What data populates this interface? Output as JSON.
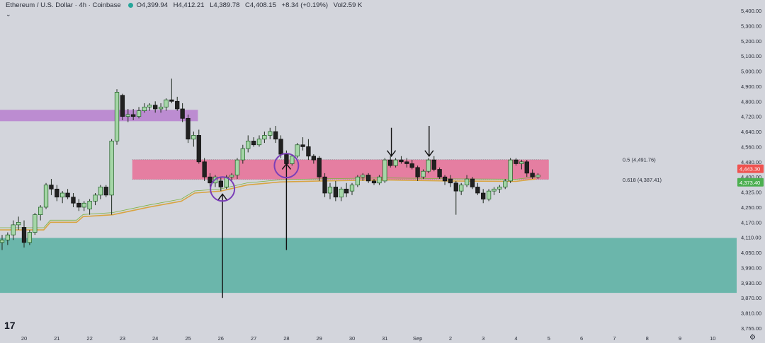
{
  "header": {
    "symbol": "Ethereum / U.S. Dollar · 4h · Coinbase",
    "open": "O4,399.94",
    "high": "H4,412.21",
    "low": "L4,389.78",
    "close": "C4,408.15",
    "change": "+8.34 (+0.19%)",
    "volume": "Vol2.59 K"
  },
  "icons": {
    "chevron": "chevron-down-icon",
    "logo": "tradingview-logo-icon",
    "settings": "gear-icon"
  },
  "colors": {
    "background": "#d3d5dc",
    "candle_up_fill": "#a5d6a7",
    "candle_up_border": "#1b5e20",
    "candle_down_fill": "#212121",
    "supply_zone": "#b77fcf",
    "demand_zone": "#5fb3a5",
    "fib_zone": "#e86f96",
    "price_label_red": "#ef5350",
    "price_label_green": "#4caf50"
  },
  "chart_data": {
    "type": "candlestick",
    "x_labels": [
      "20",
      "21",
      "22",
      "23",
      "24",
      "25",
      "26",
      "27",
      "28",
      "29",
      "30",
      "31",
      "Sep",
      "2",
      "3",
      "4",
      "5",
      "6",
      "7",
      "8",
      "9",
      "10"
    ],
    "y_ticks": [
      "5,400.00",
      "5,300.00",
      "5,200.00",
      "5,100.00",
      "5,000.00",
      "4,900.00",
      "4,800.00",
      "4,720.00",
      "4,640.00",
      "4,560.00",
      "4,480.00",
      "4,400.00",
      "4,325.00",
      "4,250.00",
      "4,170.00",
      "4,110.00",
      "4,050.00",
      "3,990.00",
      "3,930.00",
      "3,870.00",
      "3,810.00",
      "3,755.00"
    ],
    "price_labels": [
      {
        "text": "4,443.30",
        "value": 4443.3,
        "color": "red"
      },
      {
        "text": "4,373.40",
        "value": 4373.4,
        "color": "green"
      }
    ],
    "fib_levels": [
      {
        "text": "0.5 (4,491.76)",
        "value": 4491.76
      },
      {
        "text": "0.618 (4,387.41)",
        "value": 4387.41
      }
    ],
    "zones": [
      {
        "name": "supply",
        "from_day": 19.0,
        "to_day": 25.3,
        "top": 4755,
        "bottom": 4695
      },
      {
        "name": "fib",
        "from_day": 23.3,
        "to_day": 36.0,
        "top": 4491.76,
        "bottom": 4387.41
      },
      {
        "name": "demand",
        "from_day": 19.0,
        "to_day": 42.0,
        "top": 4108,
        "bottom": 3890
      }
    ],
    "step_line": [
      [
        19.0,
        4140
      ],
      [
        20.6,
        4140
      ],
      [
        20.8,
        4170
      ],
      [
        21.6,
        4170
      ],
      [
        21.8,
        4200
      ],
      [
        22.7,
        4210
      ],
      [
        23.8,
        4250
      ],
      [
        24.8,
        4280
      ],
      [
        25.2,
        4320
      ],
      [
        26.0,
        4330
      ],
      [
        26.8,
        4360
      ],
      [
        27.8,
        4375
      ],
      [
        29.0,
        4380
      ],
      [
        31.0,
        4385
      ],
      [
        33.0,
        4380
      ],
      [
        35.0,
        4378
      ],
      [
        35.6,
        4390
      ]
    ],
    "annotations": [
      {
        "type": "arrow_up",
        "day": 26.05,
        "tip": 4315,
        "tail": 3870
      },
      {
        "type": "arrow_up",
        "day": 28.0,
        "tip": 4470,
        "tail": 4060
      },
      {
        "type": "arrow_down",
        "day": 31.2,
        "tip": 4510,
        "tail": 4660
      },
      {
        "type": "arrow_down",
        "day": 32.35,
        "tip": 4510,
        "tail": 4670
      },
      {
        "type": "circle",
        "day": 26.05,
        "value": 4340
      },
      {
        "type": "circle",
        "day": 28.0,
        "value": 4460
      }
    ],
    "candles": [
      [
        19.0,
        4110,
        4140,
        4100,
        4130
      ],
      [
        19.17,
        4130,
        4140,
        4080,
        4090
      ],
      [
        19.33,
        4090,
        4120,
        4060,
        4100
      ],
      [
        19.5,
        4100,
        4130,
        4080,
        4120
      ],
      [
        19.67,
        4120,
        4180,
        4100,
        4160
      ],
      [
        19.83,
        4160,
        4200,
        4140,
        4170
      ],
      [
        20.0,
        4150,
        4180,
        4070,
        4090
      ],
      [
        20.17,
        4090,
        4140,
        4080,
        4130
      ],
      [
        20.33,
        4130,
        4220,
        4120,
        4210
      ],
      [
        20.5,
        4210,
        4260,
        4180,
        4250
      ],
      [
        20.67,
        4250,
        4370,
        4240,
        4360
      ],
      [
        20.83,
        4360,
        4390,
        4310,
        4340
      ],
      [
        21.0,
        4340,
        4360,
        4280,
        4300
      ],
      [
        21.17,
        4300,
        4330,
        4270,
        4320
      ],
      [
        21.33,
        4320,
        4340,
        4290,
        4300
      ],
      [
        21.5,
        4300,
        4320,
        4250,
        4270
      ],
      [
        21.67,
        4270,
        4290,
        4230,
        4250
      ],
      [
        21.83,
        4250,
        4280,
        4230,
        4270
      ],
      [
        22.0,
        4240,
        4290,
        4210,
        4280
      ],
      [
        22.17,
        4280,
        4320,
        4260,
        4310
      ],
      [
        22.33,
        4310,
        4360,
        4290,
        4350
      ],
      [
        22.5,
        4350,
        4360,
        4300,
        4310
      ],
      [
        22.67,
        4310,
        4600,
        4210,
        4590
      ],
      [
        22.83,
        4590,
        4880,
        4570,
        4860
      ],
      [
        23.0,
        4840,
        4850,
        4700,
        4720
      ],
      [
        23.17,
        4720,
        4760,
        4690,
        4730
      ],
      [
        23.33,
        4730,
        4760,
        4700,
        4720
      ],
      [
        23.5,
        4720,
        4770,
        4710,
        4750
      ],
      [
        23.67,
        4750,
        4790,
        4740,
        4770
      ],
      [
        23.83,
        4770,
        4790,
        4750,
        4780
      ],
      [
        24.0,
        4780,
        4800,
        4740,
        4760
      ],
      [
        24.17,
        4760,
        4790,
        4740,
        4770
      ],
      [
        24.33,
        4770,
        4820,
        4750,
        4810
      ],
      [
        24.5,
        4810,
        4950,
        4790,
        4800
      ],
      [
        24.67,
        4800,
        4830,
        4750,
        4760
      ],
      [
        24.83,
        4760,
        4790,
        4690,
        4710
      ],
      [
        25.0,
        4710,
        4730,
        4580,
        4600
      ],
      [
        25.17,
        4600,
        4640,
        4560,
        4620
      ],
      [
        25.33,
        4620,
        4650,
        4470,
        4480
      ],
      [
        25.5,
        4480,
        4500,
        4380,
        4400
      ],
      [
        25.67,
        4400,
        4420,
        4350,
        4370
      ],
      [
        25.83,
        4370,
        4410,
        4350,
        4400
      ],
      [
        26.0,
        4380,
        4400,
        4330,
        4350
      ],
      [
        26.17,
        4350,
        4410,
        4340,
        4400
      ],
      [
        26.33,
        4400,
        4420,
        4380,
        4410
      ],
      [
        26.5,
        4410,
        4500,
        4390,
        4490
      ],
      [
        26.67,
        4490,
        4570,
        4470,
        4550
      ],
      [
        26.83,
        4550,
        4620,
        4530,
        4590
      ],
      [
        27.0,
        4590,
        4610,
        4560,
        4570
      ],
      [
        27.17,
        4570,
        4620,
        4560,
        4600
      ],
      [
        27.33,
        4600,
        4640,
        4580,
        4620
      ],
      [
        27.5,
        4620,
        4660,
        4600,
        4640
      ],
      [
        27.67,
        4640,
        4670,
        4580,
        4600
      ],
      [
        27.83,
        4600,
        4620,
        4500,
        4520
      ],
      [
        28.0,
        4520,
        4540,
        4450,
        4470
      ],
      [
        28.17,
        4470,
        4520,
        4460,
        4510
      ],
      [
        28.33,
        4510,
        4580,
        4500,
        4570
      ],
      [
        28.5,
        4570,
        4610,
        4540,
        4560
      ],
      [
        28.67,
        4560,
        4600,
        4490,
        4510
      ],
      [
        28.83,
        4510,
        4520,
        4470,
        4490
      ],
      [
        29.0,
        4500,
        4510,
        4380,
        4400
      ],
      [
        29.17,
        4400,
        4420,
        4300,
        4320
      ],
      [
        29.33,
        4320,
        4370,
        4290,
        4350
      ],
      [
        29.5,
        4350,
        4380,
        4280,
        4300
      ],
      [
        29.67,
        4300,
        4350,
        4280,
        4340
      ],
      [
        29.83,
        4340,
        4370,
        4300,
        4320
      ],
      [
        30.0,
        4330,
        4370,
        4310,
        4360
      ],
      [
        30.17,
        4360,
        4410,
        4350,
        4400
      ],
      [
        30.33,
        4400,
        4420,
        4380,
        4410
      ],
      [
        30.5,
        4410,
        4420,
        4370,
        4380
      ],
      [
        30.67,
        4380,
        4390,
        4360,
        4370
      ],
      [
        30.83,
        4370,
        4410,
        4360,
        4400
      ],
      [
        31.0,
        4380,
        4500,
        4370,
        4490
      ],
      [
        31.17,
        4490,
        4510,
        4450,
        4460
      ],
      [
        31.33,
        4460,
        4500,
        4450,
        4490
      ],
      [
        31.5,
        4490,
        4510,
        4470,
        4480
      ],
      [
        31.67,
        4480,
        4500,
        4450,
        4470
      ],
      [
        31.83,
        4470,
        4490,
        4440,
        4450
      ],
      [
        32.0,
        4450,
        4460,
        4380,
        4400
      ],
      [
        32.17,
        4400,
        4440,
        4390,
        4430
      ],
      [
        32.33,
        4430,
        4500,
        4420,
        4490
      ],
      [
        32.5,
        4490,
        4510,
        4430,
        4440
      ],
      [
        32.67,
        4440,
        4450,
        4390,
        4400
      ],
      [
        32.83,
        4400,
        4410,
        4360,
        4380
      ],
      [
        33.0,
        4390,
        4410,
        4350,
        4370
      ],
      [
        33.17,
        4370,
        4380,
        4210,
        4330
      ],
      [
        33.33,
        4330,
        4370,
        4310,
        4360
      ],
      [
        33.5,
        4360,
        4410,
        4350,
        4390
      ],
      [
        33.67,
        4390,
        4400,
        4340,
        4350
      ],
      [
        33.83,
        4350,
        4370,
        4310,
        4320
      ],
      [
        34.0,
        4320,
        4340,
        4270,
        4290
      ],
      [
        34.17,
        4290,
        4340,
        4280,
        4330
      ],
      [
        34.33,
        4330,
        4350,
        4310,
        4340
      ],
      [
        34.5,
        4340,
        4360,
        4320,
        4350
      ],
      [
        34.67,
        4350,
        4390,
        4340,
        4380
      ],
      [
        34.83,
        4380,
        4500,
        4370,
        4490
      ],
      [
        35.0,
        4490,
        4500,
        4460,
        4470
      ],
      [
        35.17,
        4470,
        4490,
        4440,
        4480
      ],
      [
        35.33,
        4480,
        4490,
        4400,
        4420
      ],
      [
        35.5,
        4420,
        4440,
        4390,
        4400
      ],
      [
        35.67,
        4400,
        4420,
        4390,
        4410
      ]
    ],
    "candle_format": [
      "day",
      "open",
      "high",
      "low",
      "close"
    ],
    "ylim": [
      3755,
      5400
    ],
    "xlim": [
      19.0,
      40.0
    ]
  }
}
